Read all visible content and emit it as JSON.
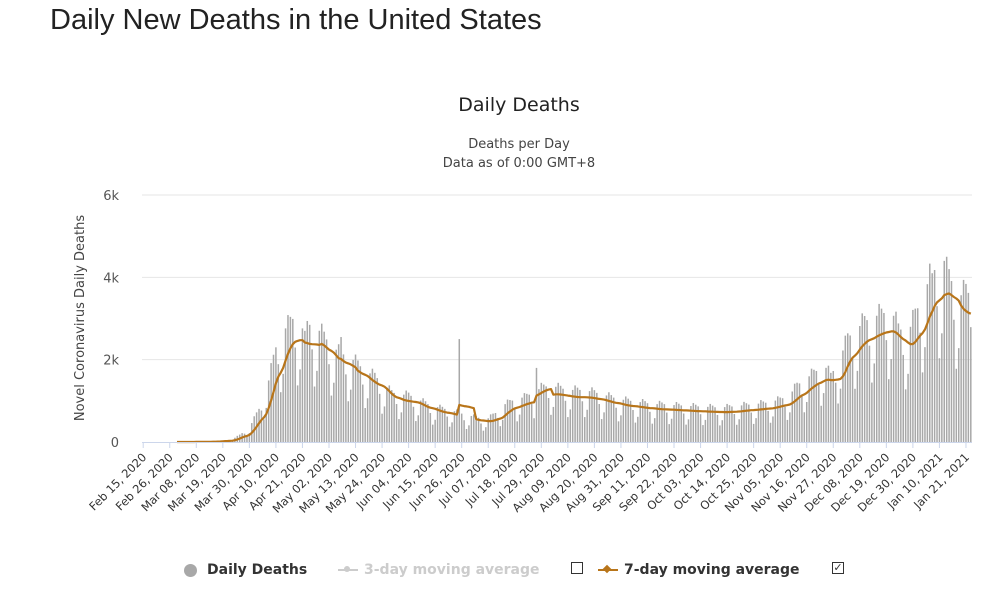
{
  "page": {
    "title": "Daily New Deaths in the United States"
  },
  "chart_data": {
    "type": "bar",
    "title": "Daily Deaths",
    "subtitle_lines": [
      "Deaths per Day",
      "Data as of 0:00 GMT+8"
    ],
    "ylabel": "Novel Coronavirus Daily Deaths",
    "xlabel": "",
    "ylim": [
      0,
      6000
    ],
    "y_ticks": [
      "0",
      "2k",
      "4k",
      "6k"
    ],
    "x_range": [
      "2020-02-15",
      "2021-01-23"
    ],
    "x_tick_labels": [
      "Feb 15, 2020",
      "Feb 26, 2020",
      "Mar 08, 2020",
      "Mar 19, 2020",
      "Mar 30, 2020",
      "Apr 10, 2020",
      "Apr 21, 2020",
      "May 02, 2020",
      "May 13, 2020",
      "May 24, 2020",
      "Jun 04, 2020",
      "Jun 15, 2020",
      "Jun 26, 2020",
      "Jul 07, 2020",
      "Jul 18, 2020",
      "Jul 29, 2020",
      "Aug 09, 2020",
      "Aug 20, 2020",
      "Aug 31, 2020",
      "Sep 11, 2020",
      "Sep 22, 2020",
      "Oct 03, 2020",
      "Oct 14, 2020",
      "Oct 25, 2020",
      "Nov 05, 2020",
      "Nov 16, 2020",
      "Nov 27, 2020",
      "Dec 08, 2020",
      "Dec 19, 2020",
      "Dec 30, 2020",
      "Jan 10, 2021",
      "Jan 21, 2021"
    ],
    "grid": true,
    "legend_position": "bottom",
    "series": [
      {
        "name": "Daily Deaths",
        "kind": "bar",
        "color": "#a8a8a8",
        "visible": true,
        "anchor_dates": [
          "2020-02-15",
          "2020-02-29",
          "2020-03-08",
          "2020-03-15",
          "2020-03-19",
          "2020-03-23",
          "2020-03-26",
          "2020-03-30",
          "2020-04-03",
          "2020-04-07",
          "2020-04-10",
          "2020-04-14",
          "2020-04-17",
          "2020-04-21",
          "2020-04-25",
          "2020-04-29",
          "2020-05-02",
          "2020-05-06",
          "2020-05-10",
          "2020-05-13",
          "2020-05-17",
          "2020-05-21",
          "2020-05-24",
          "2020-05-28",
          "2020-06-01",
          "2020-06-04",
          "2020-06-08",
          "2020-06-12",
          "2020-06-15",
          "2020-06-19",
          "2020-06-23",
          "2020-06-26",
          "2020-06-30",
          "2020-07-04",
          "2020-07-07",
          "2020-07-11",
          "2020-07-14",
          "2020-07-18",
          "2020-07-22",
          "2020-07-26",
          "2020-07-29",
          "2020-08-02",
          "2020-08-05",
          "2020-08-09",
          "2020-08-13",
          "2020-08-16",
          "2020-08-20",
          "2020-08-24",
          "2020-08-27",
          "2020-08-31",
          "2020-09-04",
          "2020-09-07",
          "2020-09-11",
          "2020-09-15",
          "2020-09-18",
          "2020-09-22",
          "2020-09-26",
          "2020-09-29",
          "2020-10-03",
          "2020-10-07",
          "2020-10-10",
          "2020-10-14",
          "2020-10-18",
          "2020-10-21",
          "2020-10-25",
          "2020-10-29",
          "2020-11-01",
          "2020-11-05",
          "2020-11-09",
          "2020-11-12",
          "2020-11-16",
          "2020-11-20",
          "2020-11-23",
          "2020-11-26",
          "2020-11-30",
          "2020-12-03",
          "2020-12-07",
          "2020-12-10",
          "2020-12-14",
          "2020-12-17",
          "2020-12-21",
          "2020-12-24",
          "2020-12-28",
          "2020-12-31",
          "2021-01-04",
          "2021-01-07",
          "2021-01-10",
          "2021-01-13",
          "2021-01-16",
          "2021-01-19",
          "2021-01-21",
          "2021-01-23"
        ],
        "anchor_values": [
          0,
          0,
          2,
          10,
          30,
          60,
          150,
          300,
          700,
          1300,
          2000,
          2400,
          2600,
          2400,
          2500,
          2300,
          2100,
          1900,
          1800,
          1700,
          1500,
          1400,
          1250,
          1050,
          1000,
          1000,
          900,
          800,
          750,
          700,
          650,
          600,
          550,
          500,
          500,
          650,
          800,
          900,
          950,
          1050,
          1150,
          1200,
          1150,
          1100,
          1100,
          1100,
          1050,
          1000,
          950,
          900,
          870,
          850,
          820,
          800,
          800,
          780,
          770,
          760,
          750,
          740,
          730,
          740,
          760,
          780,
          800,
          820,
          850,
          900,
          1000,
          1200,
          1350,
          1500,
          1650,
          1400,
          1800,
          2200,
          2400,
          2550,
          2650,
          2700,
          2800,
          2400,
          2300,
          2700,
          3200,
          3600,
          3700,
          3600,
          3300,
          3100,
          3200,
          3100
        ],
        "weekly_pattern": [
          0.55,
          0.72,
          1.15,
          1.25,
          1.2,
          1.15,
          0.9
        ],
        "notable_days": {
          "2020-06-25": 2500,
          "2020-07-27": 1800,
          "2021-01-12": 4400,
          "2021-01-07": 4100,
          "2020-04-22": 2700,
          "2020-05-07": 2550
        }
      },
      {
        "name": "3-day moving average",
        "kind": "line",
        "color": "#c8c8c8",
        "visible": false
      },
      {
        "name": "7-day moving average",
        "kind": "line",
        "color": "#b8751a",
        "visible": true
      }
    ]
  },
  "legend": {
    "items": [
      {
        "label": "Daily Deaths",
        "color": "#a8a8a8",
        "active": true
      },
      {
        "label": "3-day moving average",
        "color": "#c8c8c8",
        "active": false,
        "checked": false
      },
      {
        "label": "7-day moving average",
        "color": "#b8751a",
        "active": true,
        "checked": true
      }
    ]
  }
}
